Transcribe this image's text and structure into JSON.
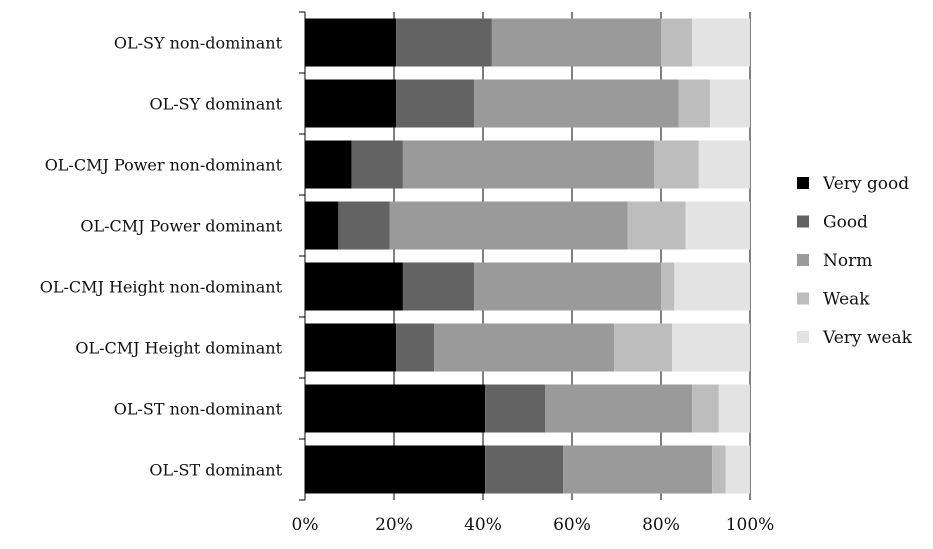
{
  "chart_data": {
    "type": "bar",
    "orientation": "horizontal",
    "stacked": "percent",
    "categories": [
      "OL-SY non-dominant",
      "OL-SY dominant",
      "OL-CMJ Power non-dominant",
      "OL-CMJ Power dominant",
      "OL-CMJ Height non-dominant",
      "OL-CMJ Height dominant",
      "OL-ST non-dominant",
      "OL-ST dominant"
    ],
    "series": [
      {
        "name": "Very good",
        "color": "#000000",
        "values": [
          20.5,
          20.5,
          10.5,
          7.5,
          22,
          20.5,
          40.5,
          40.5
        ]
      },
      {
        "name": "Good",
        "color": "#636363",
        "values": [
          21.5,
          17.5,
          11.5,
          11.5,
          16,
          8.5,
          13.5,
          17.5
        ]
      },
      {
        "name": "Norm",
        "color": "#9a9a9a",
        "values": [
          38,
          46,
          56.5,
          53.5,
          42,
          40.5,
          33,
          33.5
        ]
      },
      {
        "name": "Weak",
        "color": "#bdbdbd",
        "values": [
          7,
          7,
          10,
          13,
          3,
          13,
          6,
          3
        ]
      },
      {
        "name": "Very weak",
        "color": "#e3e3e3",
        "values": [
          13,
          9,
          11.5,
          14.5,
          17,
          17.5,
          7,
          5.5
        ]
      }
    ],
    "x_ticks": [
      "0%",
      "20%",
      "40%",
      "60%",
      "80%",
      "100%"
    ],
    "xlim": [
      0,
      100
    ],
    "grid": "vertical major gridlines",
    "legend_position": "right"
  }
}
